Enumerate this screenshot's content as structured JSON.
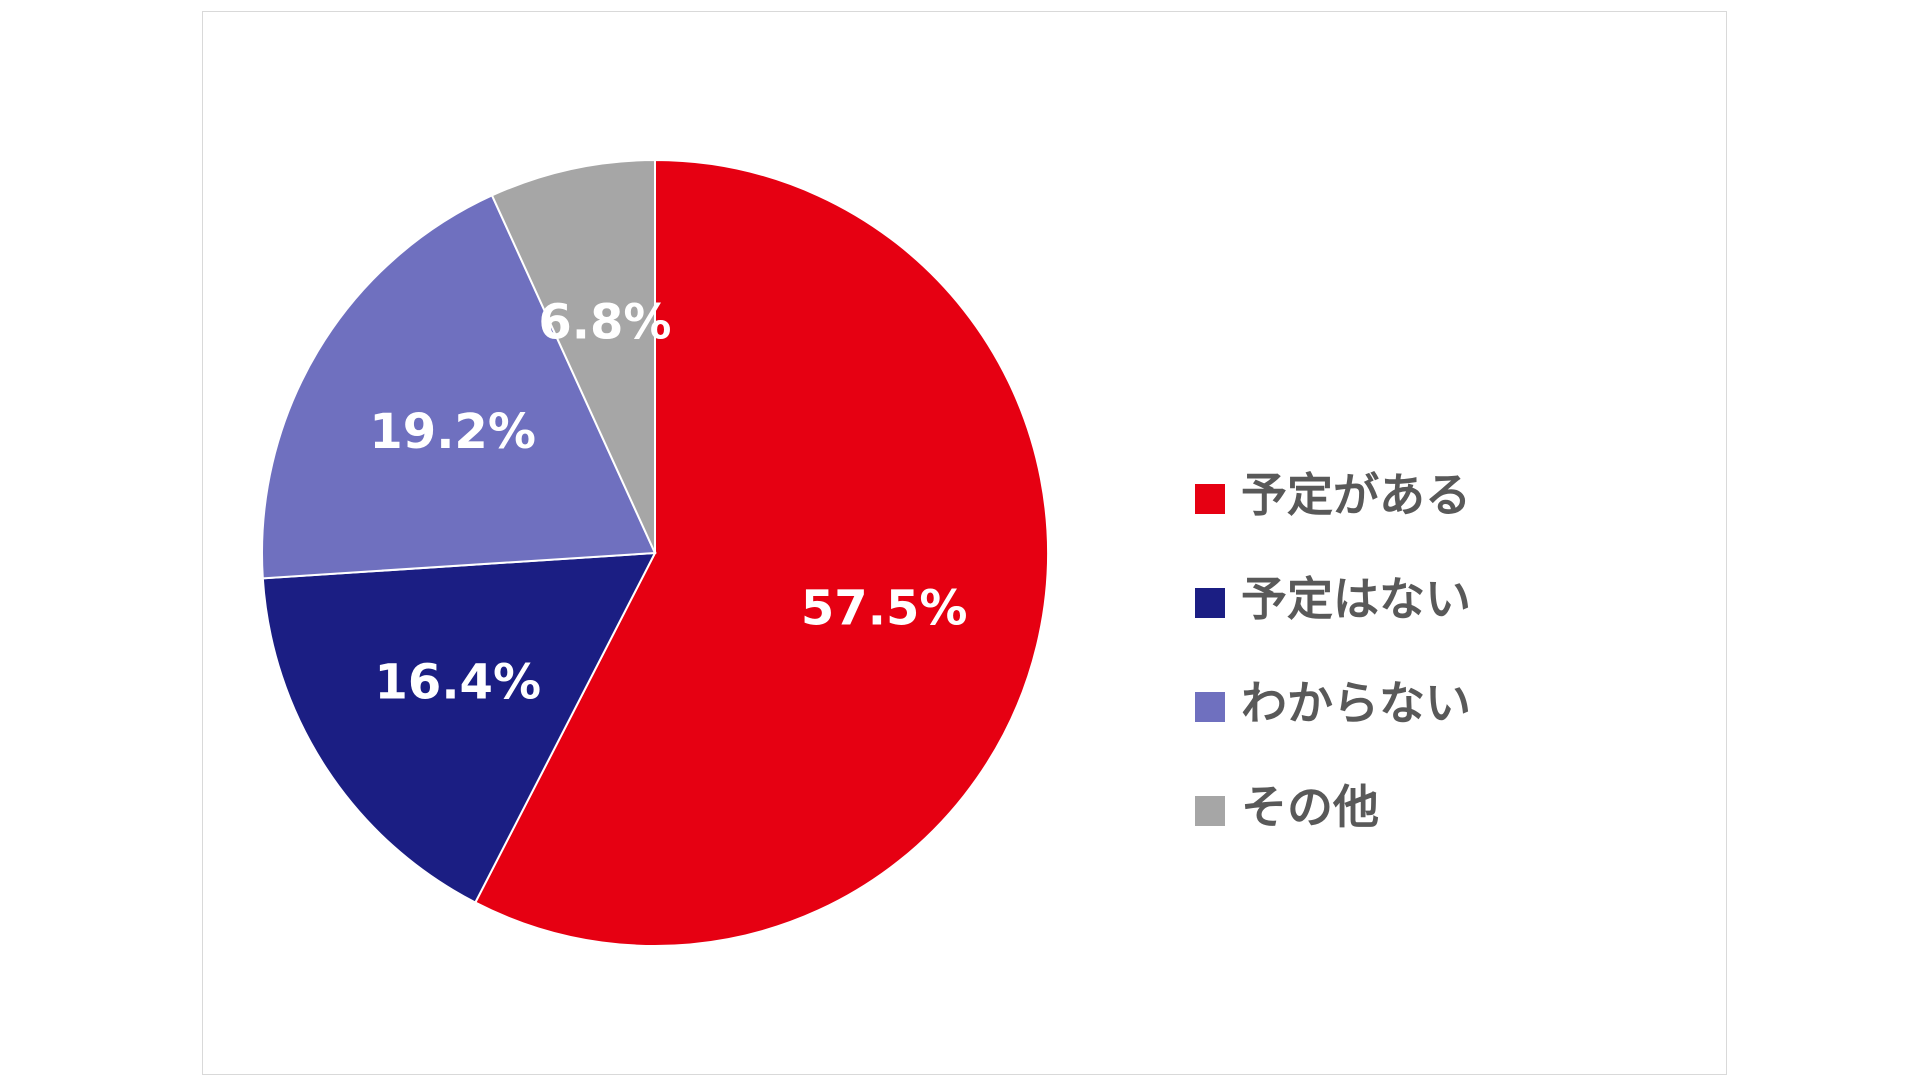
{
  "chart_data": {
    "type": "pie",
    "title": "",
    "categories": [
      "予定がある",
      "予定はない",
      "わからない",
      "その他"
    ],
    "values": [
      57.5,
      16.4,
      19.2,
      6.8
    ],
    "labels": [
      "57.5%",
      "16.4%",
      "19.2%",
      "6.8%"
    ],
    "colors": [
      "#E60012",
      "#1B1E83",
      "#6F70BF",
      "#A6A6A6"
    ],
    "start_angle": "12 o'clock",
    "direction": "clockwise",
    "legend": "right"
  },
  "legend": {
    "items": [
      {
        "label": "予定がある",
        "color": "#E60012"
      },
      {
        "label": "予定はない",
        "color": "#1B1E83"
      },
      {
        "label": "わからない",
        "color": "#6F70BF"
      },
      {
        "label": "その他",
        "color": "#A6A6A6"
      }
    ]
  }
}
